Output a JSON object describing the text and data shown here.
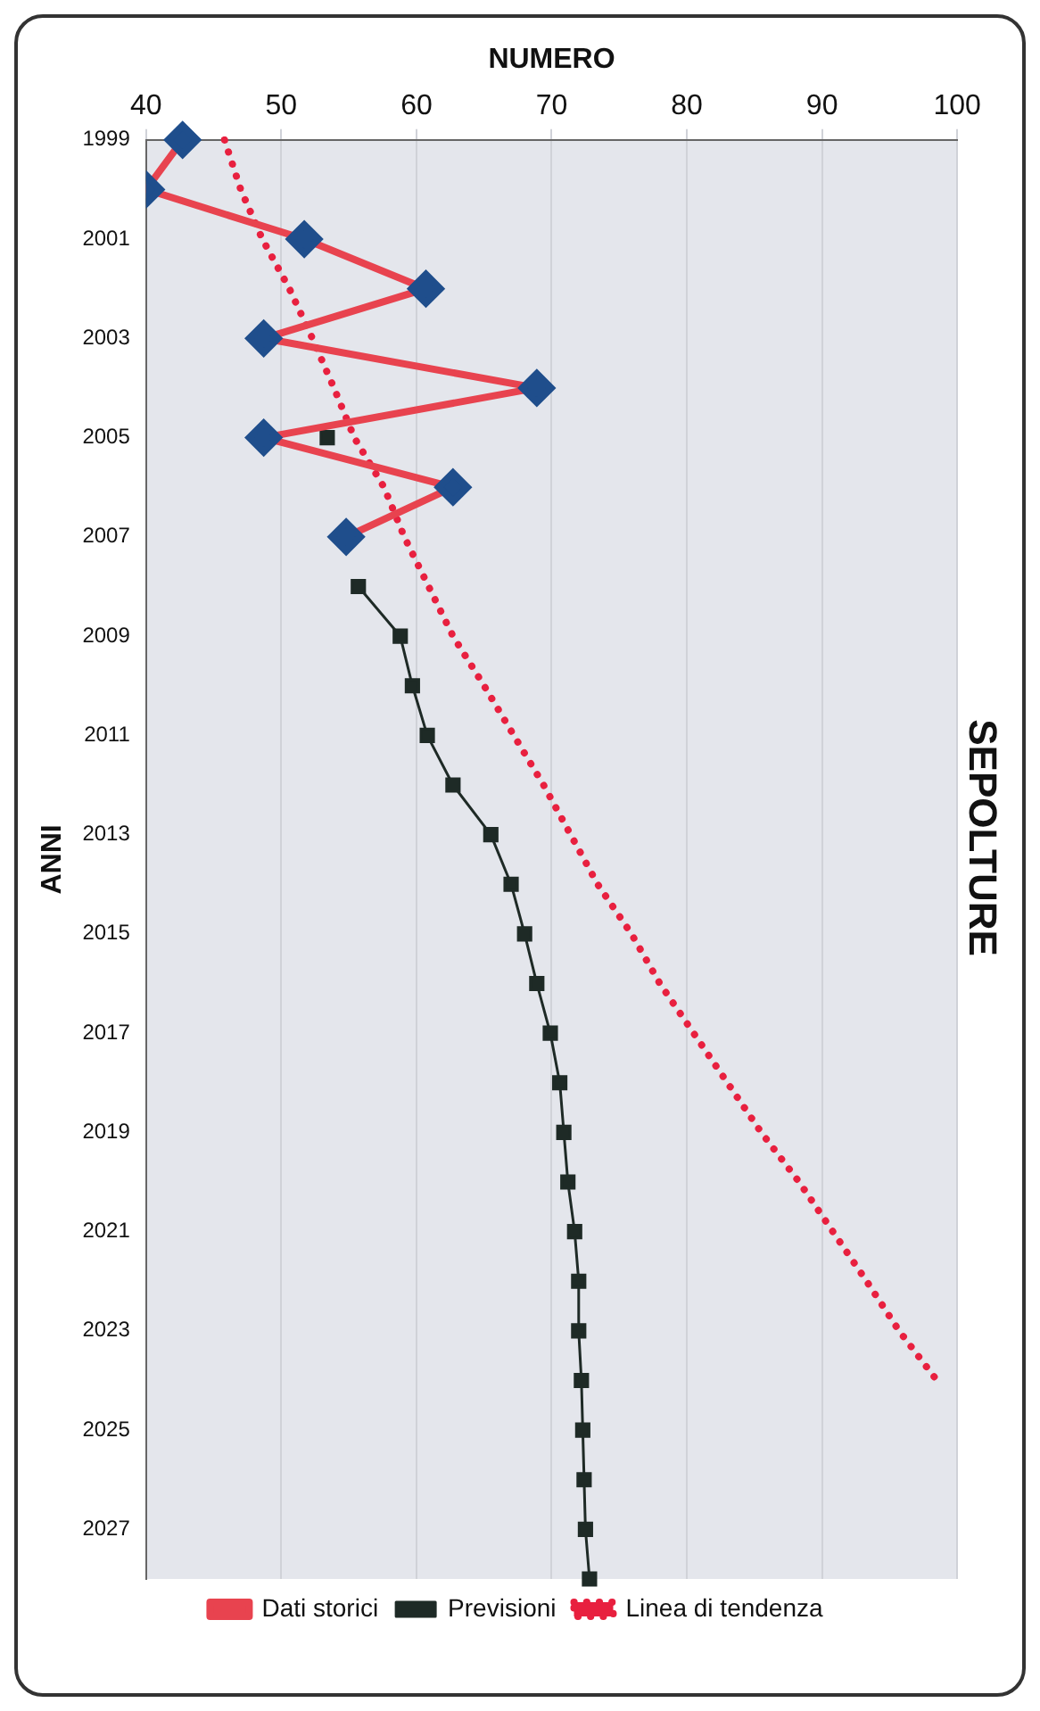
{
  "chart_data": {
    "type": "line",
    "title": "SEPOLTURE",
    "xlabel": "NUMERO",
    "ylabel": "ANNI",
    "orientation": "horizontal",
    "categories": [
      "1999",
      null,
      "2001",
      null,
      "2003",
      null,
      "2005",
      null,
      "2007",
      null,
      "2009",
      null,
      "2011",
      null,
      "2013",
      null,
      "2015",
      null,
      "2017",
      null,
      "2019",
      null,
      "2021",
      null,
      "2023",
      null,
      "2025",
      null,
      "2027",
      null
    ],
    "series": [
      {
        "name": "Dati storici",
        "color": "#e8434f",
        "marker": "diamond",
        "line_style": "solid",
        "values": [
          42.7,
          40,
          51.7,
          60.7,
          48.7,
          68.9,
          48.7,
          62.7,
          54.8,
          null,
          null,
          null,
          null,
          null,
          null,
          null,
          null,
          null,
          null,
          null,
          null,
          null,
          null,
          null,
          null,
          null,
          null,
          null,
          null,
          null
        ]
      },
      {
        "name": "Previsioni",
        "color": "#1e2a26",
        "marker": "square",
        "line_style": "solid",
        "values": [
          null,
          null,
          null,
          null,
          null,
          null,
          53.4,
          null,
          null,
          55.7,
          58.8,
          59.7,
          60.8,
          62.7,
          65.5,
          67.0,
          68.0,
          68.9,
          69.9,
          70.6,
          70.9,
          71.2,
          71.7,
          72.0,
          72.0,
          72.2,
          72.3,
          72.4,
          72.5,
          72.8
        ]
      },
      {
        "name": "Linea di tendenza",
        "color": "#e8203f",
        "marker": "none",
        "line_style": "dotted",
        "values": [
          45.8,
          47.0,
          48.6,
          50.6,
          52.3,
          53.9,
          55.4,
          57.6,
          59.1,
          60.9,
          62.7,
          65.0,
          67.2,
          69.4,
          71.4,
          73.4,
          75.9,
          78.0,
          80.5,
          83.0,
          85.5,
          88.3,
          90.8,
          93.3,
          95.7,
          98.5,
          null,
          null,
          null,
          null
        ]
      }
    ],
    "xlim": [
      40,
      100
    ],
    "xticks": [
      40,
      50,
      60,
      70,
      80,
      90,
      100
    ],
    "grid": "x",
    "legend": "bottom"
  }
}
